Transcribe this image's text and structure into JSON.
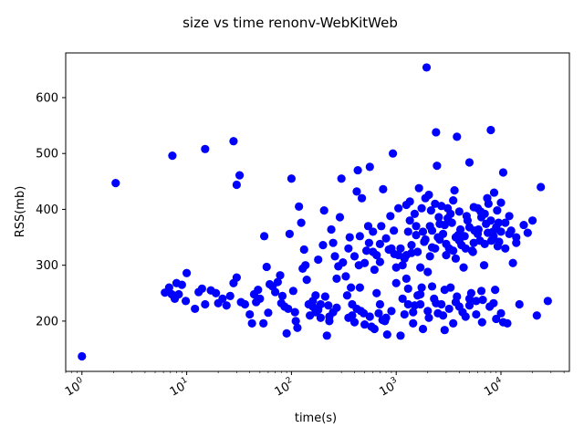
{
  "chart_data": {
    "type": "scatter",
    "title": "size vs time renonv-WebKitWeb",
    "xlabel": "time(s)",
    "ylabel": "RSS(mb)",
    "xscale": "log",
    "xlim": [
      0.7,
      45000
    ],
    "ylim": [
      110,
      680
    ],
    "grid": false,
    "legend": "none",
    "marker_color": "#0000ff",
    "x_ticks": [
      {
        "value": 1,
        "label": "10^0"
      },
      {
        "value": 10,
        "label": "10^1"
      },
      {
        "value": 100,
        "label": "10^2"
      },
      {
        "value": 1000,
        "label": "10^3"
      },
      {
        "value": 10000,
        "label": "10^4"
      }
    ],
    "y_ticks": [
      200,
      300,
      400,
      500,
      600
    ],
    "series": [
      {
        "points": [
          [
            1.0,
            137
          ],
          [
            2.1,
            447
          ],
          [
            7.3,
            496
          ],
          [
            15,
            508
          ],
          [
            28,
            522
          ],
          [
            32,
            461
          ],
          [
            30,
            444
          ],
          [
            6.2,
            251
          ],
          [
            6.8,
            260
          ],
          [
            7.2,
            248
          ],
          [
            7.7,
            240
          ],
          [
            8.0,
            268
          ],
          [
            8.4,
            248
          ],
          [
            9.0,
            265
          ],
          [
            9.8,
            236
          ],
          [
            10,
            286
          ],
          [
            12,
            222
          ],
          [
            13,
            252
          ],
          [
            14,
            258
          ],
          [
            15,
            230
          ],
          [
            17,
            255
          ],
          [
            19,
            250
          ],
          [
            20,
            232
          ],
          [
            22,
            240
          ],
          [
            24,
            228
          ],
          [
            26,
            245
          ],
          [
            28,
            268
          ],
          [
            30,
            278
          ],
          [
            33,
            234
          ],
          [
            36,
            230
          ],
          [
            40,
            212
          ],
          [
            42,
            196
          ],
          [
            44,
            248
          ],
          [
            46,
            234
          ],
          [
            48,
            256
          ],
          [
            50,
            240
          ],
          [
            54,
            196
          ],
          [
            55,
            352
          ],
          [
            58,
            297
          ],
          [
            60,
            215
          ],
          [
            62,
            266
          ],
          [
            66,
            262
          ],
          [
            70,
            252
          ],
          [
            74,
            270
          ],
          [
            78,
            282
          ],
          [
            80,
            232
          ],
          [
            82,
            245
          ],
          [
            86,
            226
          ],
          [
            90,
            178
          ],
          [
            93,
            222
          ],
          [
            96,
            356
          ],
          [
            100,
            455
          ],
          [
            104,
            254
          ],
          [
            108,
            216
          ],
          [
            110,
            200
          ],
          [
            114,
            188
          ],
          [
            118,
            405
          ],
          [
            124,
            376
          ],
          [
            128,
            294
          ],
          [
            132,
            328
          ],
          [
            136,
            300
          ],
          [
            140,
            274
          ],
          [
            146,
            230
          ],
          [
            150,
            210
          ],
          [
            160,
            236
          ],
          [
            170,
            216
          ],
          [
            180,
            310
          ],
          [
            190,
            206
          ],
          [
            200,
            336
          ],
          [
            205,
            398
          ],
          [
            210,
            244
          ],
          [
            218,
            174
          ],
          [
            225,
            228
          ],
          [
            230,
            200
          ],
          [
            240,
            364
          ],
          [
            250,
            340
          ],
          [
            260,
            316
          ],
          [
            270,
            276
          ],
          [
            280,
            298
          ],
          [
            290,
            386
          ],
          [
            300,
            455
          ],
          [
            310,
            305
          ],
          [
            330,
            280
          ],
          [
            340,
            246
          ],
          [
            350,
            206
          ],
          [
            360,
            350
          ],
          [
            370,
            260
          ],
          [
            380,
            230
          ],
          [
            400,
            198
          ],
          [
            420,
            432
          ],
          [
            430,
            470
          ],
          [
            440,
            300
          ],
          [
            450,
            260
          ],
          [
            470,
            420
          ],
          [
            490,
            214
          ],
          [
            520,
            326
          ],
          [
            540,
            370
          ],
          [
            560,
            476
          ],
          [
            580,
            190
          ],
          [
            600,
            324
          ],
          [
            620,
            292
          ],
          [
            650,
            250
          ],
          [
            700,
            230
          ],
          [
            720,
            370
          ],
          [
            750,
            436
          ],
          [
            780,
            200
          ],
          [
            800,
            206
          ],
          [
            820,
            176
          ],
          [
            850,
            328
          ],
          [
            880,
            388
          ],
          [
            900,
            218
          ],
          [
            930,
            500
          ],
          [
            960,
            320
          ],
          [
            1000,
            296
          ],
          [
            1050,
            402
          ],
          [
            1100,
            174
          ],
          [
            1150,
            240
          ],
          [
            1200,
            312
          ],
          [
            1250,
            276
          ],
          [
            1300,
            230
          ],
          [
            1350,
            380
          ],
          [
            1400,
            322
          ],
          [
            1450,
            196
          ],
          [
            1500,
            228
          ],
          [
            1550,
            354
          ],
          [
            1600,
            246
          ],
          [
            1650,
            438
          ],
          [
            1700,
            296
          ],
          [
            1750,
            260
          ],
          [
            1800,
            186
          ],
          [
            1850,
            342
          ],
          [
            1900,
            420
          ],
          [
            1950,
            654
          ],
          [
            2000,
            288
          ],
          [
            2050,
            206
          ],
          [
            2100,
            370
          ],
          [
            2150,
            398
          ],
          [
            2200,
            332
          ],
          [
            2300,
            240
          ],
          [
            2350,
            330
          ],
          [
            2400,
            538
          ],
          [
            2450,
            478
          ],
          [
            2500,
            214
          ],
          [
            2550,
            386
          ],
          [
            2600,
            346
          ],
          [
            2700,
            230
          ],
          [
            2800,
            356
          ],
          [
            2900,
            184
          ],
          [
            3000,
            318
          ],
          [
            3100,
            402
          ],
          [
            3200,
            330
          ],
          [
            3300,
            260
          ],
          [
            3400,
            376
          ],
          [
            3500,
            196
          ],
          [
            3600,
            434
          ],
          [
            3700,
            312
          ],
          [
            3800,
            530
          ],
          [
            3900,
            354
          ],
          [
            4000,
            226
          ],
          [
            4200,
            336
          ],
          [
            4400,
            296
          ],
          [
            4600,
            208
          ],
          [
            4800,
            380
          ],
          [
            5000,
            484
          ],
          [
            5200,
            250
          ],
          [
            5400,
            324
          ],
          [
            5600,
            362
          ],
          [
            5800,
            236
          ],
          [
            6000,
            402
          ],
          [
            6300,
            344
          ],
          [
            6600,
            198
          ],
          [
            6900,
            300
          ],
          [
            7200,
            374
          ],
          [
            7600,
            410
          ],
          [
            8000,
            542
          ],
          [
            8400,
            360
          ],
          [
            8800,
            256
          ],
          [
            9200,
            398
          ],
          [
            9600,
            342
          ],
          [
            10000,
            214
          ],
          [
            10500,
            466
          ],
          [
            11000,
            330
          ],
          [
            11500,
            196
          ],
          [
            12000,
            356
          ],
          [
            13000,
            304
          ],
          [
            14000,
            340
          ],
          [
            15000,
            230
          ],
          [
            16500,
            372
          ],
          [
            18000,
            358
          ],
          [
            20000,
            380
          ],
          [
            22000,
            210
          ],
          [
            24000,
            440
          ],
          [
            28000,
            236
          ],
          [
            1300,
            360
          ],
          [
            1500,
            392
          ],
          [
            1800,
            360
          ],
          [
            2100,
            316
          ],
          [
            2500,
            350
          ],
          [
            2900,
            372
          ],
          [
            3300,
            392
          ],
          [
            3700,
            350
          ],
          [
            4100,
            364
          ],
          [
            4500,
            352
          ],
          [
            5000,
            368
          ],
          [
            5500,
            340
          ],
          [
            6000,
            356
          ],
          [
            6500,
            386
          ],
          [
            7000,
            338
          ],
          [
            7500,
            358
          ],
          [
            8000,
            380
          ],
          [
            8500,
            352
          ],
          [
            9000,
            368
          ],
          [
            9500,
            376
          ],
          [
            10000,
            360
          ],
          [
            1100,
            330
          ],
          [
            1250,
            318
          ],
          [
            1400,
            336
          ],
          [
            1600,
            324
          ],
          [
            1900,
            346
          ],
          [
            2200,
            362
          ],
          [
            2600,
            374
          ],
          [
            3000,
            338
          ],
          [
            3500,
            326
          ],
          [
            4000,
            344
          ],
          [
            4600,
            330
          ],
          [
            5300,
            326
          ],
          [
            6100,
            364
          ],
          [
            7000,
            392
          ],
          [
            8100,
            344
          ],
          [
            9300,
            334
          ],
          [
            11000,
            376
          ],
          [
            12500,
            362
          ],
          [
            14000,
            350
          ],
          [
            1200,
            212
          ],
          [
            1450,
            216
          ],
          [
            1700,
            230
          ],
          [
            2000,
            218
          ],
          [
            2400,
            232
          ],
          [
            2800,
            210
          ],
          [
            3200,
            222
          ],
          [
            3700,
            234
          ],
          [
            4300,
            216
          ],
          [
            5000,
            228
          ],
          [
            5800,
            212
          ],
          [
            6700,
            238
          ],
          [
            7800,
            226
          ],
          [
            9000,
            204
          ],
          [
            10500,
            198
          ],
          [
            1000,
            268
          ],
          [
            1300,
            258
          ],
          [
            1700,
            248
          ],
          [
            2200,
            262
          ],
          [
            2900,
            256
          ],
          [
            3800,
            244
          ],
          [
            5000,
            240
          ],
          [
            6500,
            254
          ],
          [
            8500,
            232
          ],
          [
            700,
            338
          ],
          [
            800,
            348
          ],
          [
            900,
            330
          ],
          [
            950,
            362
          ],
          [
            1050,
            318
          ],
          [
            1150,
            300
          ],
          [
            1250,
            408
          ],
          [
            1350,
            414
          ],
          [
            1550,
            370
          ],
          [
            1750,
            402
          ],
          [
            2050,
            426
          ],
          [
            2350,
            410
          ],
          [
            2700,
            406
          ],
          [
            3100,
            384
          ],
          [
            3500,
            416
          ],
          [
            4000,
            396
          ],
          [
            4700,
            388
          ],
          [
            5500,
            404
          ],
          [
            6400,
            396
          ],
          [
            7400,
            420
          ],
          [
            8600,
            430
          ],
          [
            10000,
            412
          ],
          [
            12000,
            388
          ],
          [
            350,
            330
          ],
          [
            400,
            316
          ],
          [
            450,
            352
          ],
          [
            500,
            304
          ],
          [
            550,
            340
          ],
          [
            600,
            360
          ],
          [
            650,
            318
          ],
          [
            700,
            306
          ],
          [
            380,
            210
          ],
          [
            420,
            222
          ],
          [
            460,
            218
          ],
          [
            500,
            194
          ],
          [
            560,
            208
          ],
          [
            620,
            186
          ],
          [
            680,
            214
          ],
          [
            740,
            202
          ],
          [
            160,
            226
          ],
          [
            170,
            246
          ],
          [
            180,
            220
          ],
          [
            190,
            230
          ],
          [
            230,
            208
          ],
          [
            250,
            216
          ],
          [
            270,
            224
          ]
        ]
      }
    ]
  }
}
